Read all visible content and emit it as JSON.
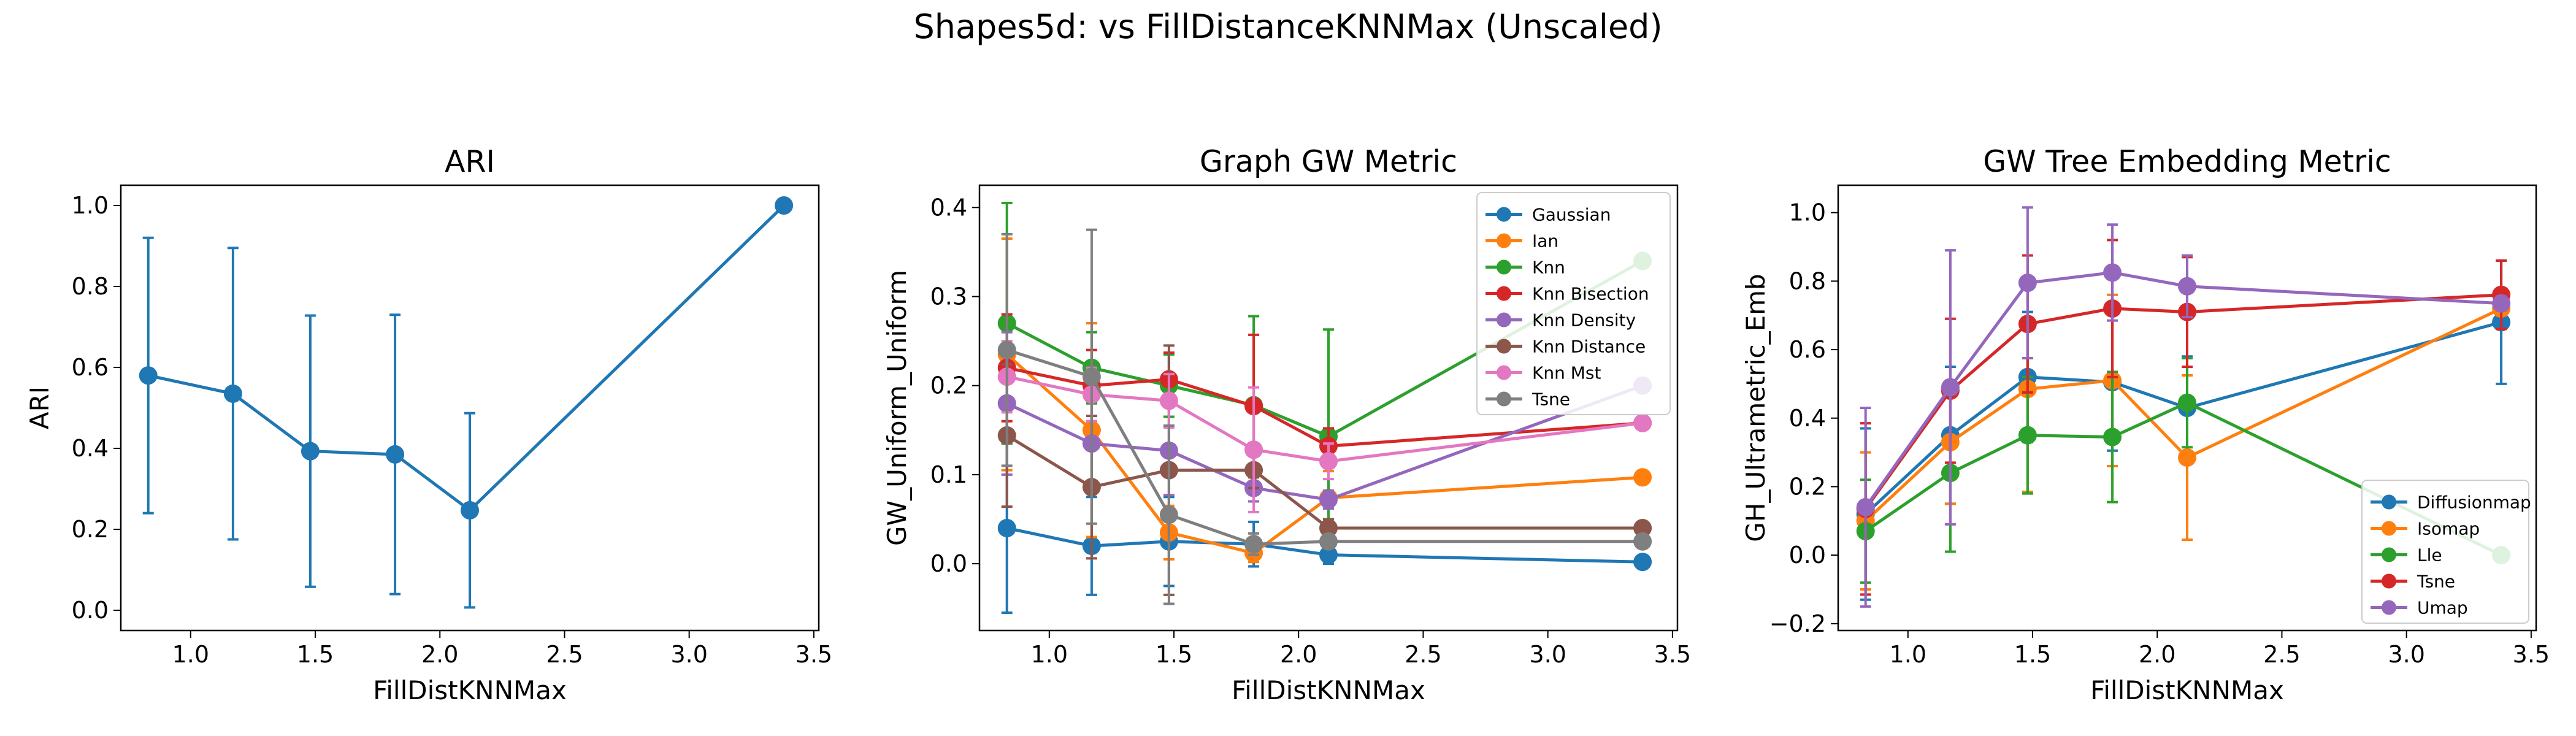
{
  "figure": {
    "suptitle": "Shapes5d: vs FillDistanceKNNMax (Unscaled)"
  },
  "palette": {
    "blue": "#1f77b4",
    "orange": "#ff7f0e",
    "green": "#2ca02c",
    "red": "#d62728",
    "purple": "#9467bd",
    "brown": "#8c564b",
    "pink": "#e377c2",
    "gray": "#7f7f7f"
  },
  "chart_data": [
    {
      "type": "line",
      "title": "ARI",
      "xlabel": "FillDistKNNMax",
      "ylabel": "ARI",
      "xlim": [
        0.72,
        3.52
      ],
      "ylim": [
        -0.05,
        1.05
      ],
      "xticks": [
        "1.0",
        "1.5",
        "2.0",
        "2.5",
        "3.0",
        "3.5"
      ],
      "yticks": [
        "0.0",
        "0.2",
        "0.4",
        "0.6",
        "0.8",
        "1.0"
      ],
      "legend": null,
      "x": [
        0.83,
        1.17,
        1.48,
        1.82,
        2.12,
        3.38
      ],
      "series": [
        {
          "color": "#1f77b4",
          "values": [
            0.58,
            0.535,
            0.393,
            0.385,
            0.247,
            1.0
          ],
          "err": [
            0.34,
            0.36,
            0.335,
            0.345,
            0.24,
            0.0
          ]
        }
      ]
    },
    {
      "type": "line",
      "title": "Graph GW Metric",
      "xlabel": "FillDistKNNMax",
      "ylabel": "GW_Uniform_Uniform",
      "xlim": [
        0.72,
        3.52
      ],
      "ylim": [
        -0.075,
        0.425
      ],
      "xticks": [
        "1.0",
        "1.5",
        "2.0",
        "2.5",
        "3.0",
        "3.5"
      ],
      "yticks": [
        "0.0",
        "0.1",
        "0.2",
        "0.3",
        "0.4"
      ],
      "legend": "upper right",
      "x": [
        0.83,
        1.17,
        1.48,
        1.82,
        2.12,
        3.38
      ],
      "series": [
        {
          "name": "Gaussian",
          "color": "#1f77b4",
          "values": [
            0.04,
            0.02,
            0.025,
            0.022,
            0.01,
            0.002
          ],
          "err": [
            0.095,
            0.055,
            0.05,
            0.025,
            0.01,
            0.0
          ]
        },
        {
          "name": "Ian",
          "color": "#ff7f0e",
          "values": [
            0.235,
            0.15,
            0.035,
            0.012,
            0.074,
            0.097
          ],
          "err": [
            0.13,
            0.12,
            0.03,
            0.01,
            0.03,
            0.0
          ]
        },
        {
          "name": "Knn",
          "color": "#2ca02c",
          "values": [
            0.27,
            0.22,
            0.2,
            0.178,
            0.143,
            0.34
          ],
          "err": [
            0.135,
            0.04,
            0.035,
            0.1,
            0.12,
            0.0
          ]
        },
        {
          "name": "Knn Bisection",
          "color": "#d62728",
          "values": [
            0.22,
            0.2,
            0.207,
            0.177,
            0.132,
            0.158
          ],
          "err": [
            0.06,
            0.04,
            0.03,
            0.08,
            0.02,
            0.0
          ]
        },
        {
          "name": "Knn Density",
          "color": "#9467bd",
          "values": [
            0.18,
            0.135,
            0.127,
            0.085,
            0.072,
            0.2
          ],
          "err": [
            0.08,
            0.05,
            0.05,
            0.015,
            0.01,
            0.0
          ]
        },
        {
          "name": "Knn Distance",
          "color": "#8c564b",
          "values": [
            0.144,
            0.086,
            0.105,
            0.105,
            0.04,
            0.04
          ],
          "err": [
            0.08,
            0.08,
            0.14,
            0.02,
            0.01,
            0.0
          ]
        },
        {
          "name": "Knn Mst",
          "color": "#e377c2",
          "values": [
            0.21,
            0.19,
            0.183,
            0.128,
            0.115,
            0.158
          ],
          "err": [
            0.04,
            0.03,
            0.03,
            0.07,
            0.02,
            0.0
          ]
        },
        {
          "name": "Tsne",
          "color": "#7f7f7f",
          "values": [
            0.24,
            0.21,
            0.055,
            0.022,
            0.025,
            0.025
          ],
          "err": [
            0.13,
            0.165,
            0.1,
            0.012,
            0.005,
            0.0
          ]
        }
      ]
    },
    {
      "type": "line",
      "title": "GW Tree Embedding Metric",
      "xlabel": "FillDistKNNMax",
      "ylabel": "GH_Ultrametric_Emb",
      "xlim": [
        0.72,
        3.52
      ],
      "ylim": [
        -0.22,
        1.08
      ],
      "xticks": [
        "1.0",
        "1.5",
        "2.0",
        "2.5",
        "3.0",
        "3.5"
      ],
      "yticks": [
        "−0.2",
        "0.0",
        "0.2",
        "0.4",
        "0.6",
        "0.8",
        "1.0"
      ],
      "legend": "lower right",
      "x": [
        0.83,
        1.17,
        1.48,
        1.82,
        2.12,
        3.38
      ],
      "series": [
        {
          "name": "Diffusionmap",
          "color": "#1f77b4",
          "values": [
            0.12,
            0.35,
            0.52,
            0.505,
            0.43,
            0.68
          ],
          "err": [
            0.25,
            0.2,
            0.19,
            0.2,
            0.15,
            0.18
          ]
        },
        {
          "name": "Isomap",
          "color": "#ff7f0e",
          "values": [
            0.1,
            0.33,
            0.485,
            0.51,
            0.285,
            0.72
          ],
          "err": [
            0.2,
            0.18,
            0.3,
            0.25,
            0.24,
            0.02
          ]
        },
        {
          "name": "Lle",
          "color": "#2ca02c",
          "values": [
            0.07,
            0.24,
            0.35,
            0.345,
            0.445,
            0.0
          ],
          "err": [
            0.15,
            0.23,
            0.17,
            0.19,
            0.13,
            0.0
          ]
        },
        {
          "name": "Tsne",
          "color": "#d62728",
          "values": [
            0.135,
            0.48,
            0.675,
            0.72,
            0.71,
            0.76
          ],
          "err": [
            0.25,
            0.21,
            0.2,
            0.2,
            0.16,
            0.1
          ]
        },
        {
          "name": "Umap",
          "color": "#9467bd",
          "values": [
            0.14,
            0.49,
            0.795,
            0.825,
            0.785,
            0.735
          ],
          "err": [
            0.29,
            0.4,
            0.22,
            0.14,
            0.09,
            0.02
          ]
        }
      ]
    }
  ]
}
